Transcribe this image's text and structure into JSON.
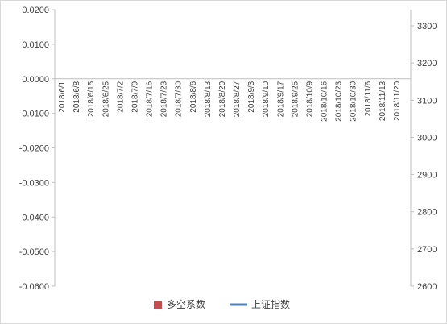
{
  "chart_data": {
    "type": "bar+line",
    "series": [
      {
        "name": "多空系数",
        "color": "#c0504d",
        "axis": "left"
      },
      {
        "name": "上证指数",
        "color": "#4f81bd",
        "axis": "right"
      }
    ],
    "left_ticks": [
      "0.0200",
      "0.0100",
      "0.0000",
      "-0.0100",
      "-0.0200",
      "-0.0300",
      "-0.0400",
      "-0.0500",
      "-0.0600"
    ],
    "right_ticks": [
      "3300",
      "3200",
      "3100",
      "3000",
      "2900",
      "2800",
      "2700",
      "2600"
    ],
    "ylim_left": [
      -0.06,
      0.02
    ],
    "ylim_right": [
      2600,
      3300
    ],
    "categories": [
      "2018/6/1",
      "2018/6/8",
      "2018/6/15",
      "2018/6/25",
      "2018/7/2",
      "2018/7/9",
      "2018/7/16",
      "2018/7/23",
      "2018/7/30",
      "2018/8/6",
      "2018/8/13",
      "2018/8/20",
      "2018/8/27",
      "2018/9/3",
      "2018/9/10",
      "2018/9/17",
      "2018/9/25",
      "2018/10/9",
      "2018/10/16",
      "2018/10/23",
      "2018/10/30",
      "2018/11/6",
      "2018/11/13",
      "2018/11/20"
    ],
    "grid": false,
    "legend_position": "bottom"
  }
}
